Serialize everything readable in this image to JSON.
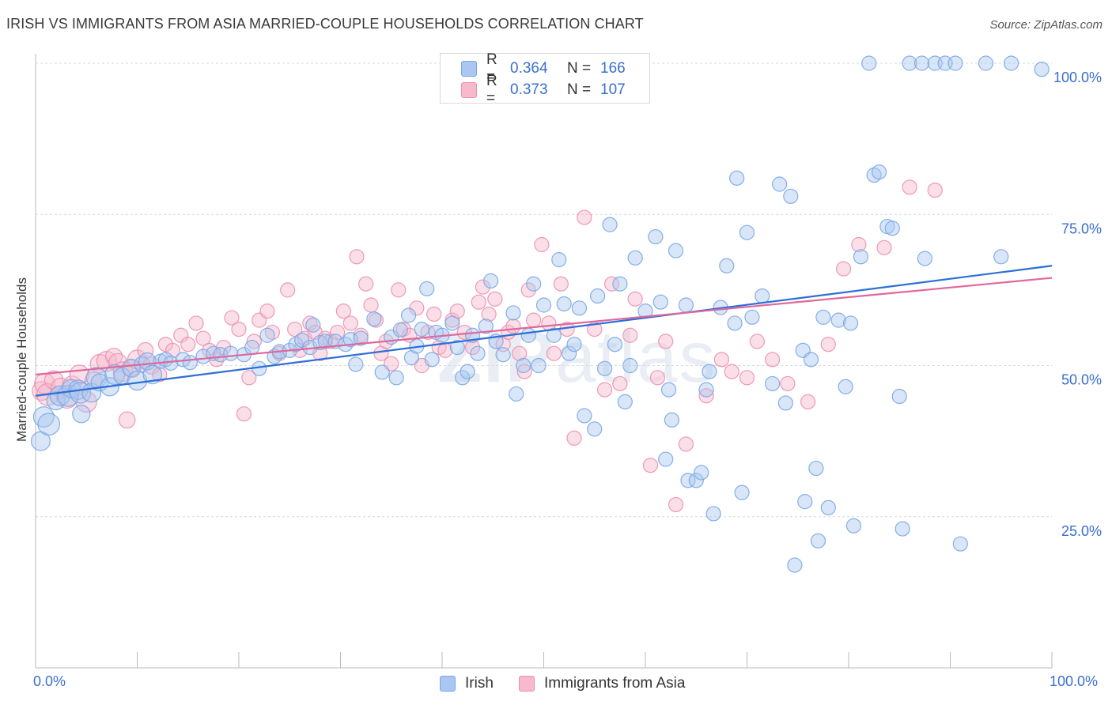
{
  "title": "IRISH VS IMMIGRANTS FROM ASIA MARRIED-COUPLE HOUSEHOLDS CORRELATION CHART",
  "source": "Source: ZipAtlas.com",
  "watermark": {
    "zip": "ZIP",
    "atlas": "atlas"
  },
  "legend_top": {
    "rows": [
      {
        "r_label": "R =",
        "r_value": "0.364",
        "n_label": "N =",
        "n_value": "166",
        "swatch": "#a9c7f0"
      },
      {
        "r_label": "R =",
        "r_value": "0.373",
        "n_label": "N =",
        "n_value": "107",
        "swatch": "#f7b9cc"
      }
    ]
  },
  "chart_data": {
    "type": "scatter",
    "xlabel": "",
    "ylabel": "Married-couple Households",
    "xlim": [
      0,
      100
    ],
    "ylim": [
      0,
      100
    ],
    "x_tick_labels": [
      "0.0%",
      "100.0%"
    ],
    "y_tick_labels": [
      "25.0%",
      "50.0%",
      "75.0%",
      "100.0%"
    ],
    "y_ticks": [
      25,
      50,
      75,
      100
    ],
    "grid": "horizontal dashed",
    "legend": "bottom",
    "series": [
      {
        "name": "Irish",
        "color": "#7aa6e6",
        "fill": "#a9c7f0",
        "line_color": "#2d6fd6",
        "trend": {
          "x": [
            0,
            100
          ],
          "y": [
            45,
            66.5
          ]
        },
        "points": [
          [
            0.5,
            37.5
          ],
          [
            0.8,
            41.5
          ],
          [
            1.3,
            40.3
          ],
          [
            2.0,
            44.2
          ],
          [
            2.4,
            45.0
          ],
          [
            3.2,
            45.0
          ],
          [
            3.5,
            46.2
          ],
          [
            4.2,
            46.0
          ],
          [
            4.4,
            45.5
          ],
          [
            4.5,
            42.0
          ],
          [
            5.5,
            45.5
          ],
          [
            6.0,
            48.0
          ],
          [
            6.3,
            47.2
          ],
          [
            7.3,
            46.5
          ],
          [
            7.8,
            48.5
          ],
          [
            8.5,
            48.3
          ],
          [
            9.4,
            49.6
          ],
          [
            10.0,
            47.5
          ],
          [
            10.5,
            50.2
          ],
          [
            11.0,
            50.7
          ],
          [
            11.5,
            48.5
          ],
          [
            12.3,
            50.7
          ],
          [
            12.8,
            51.0
          ],
          [
            13.3,
            50.4
          ],
          [
            14.5,
            51.0
          ],
          [
            15.2,
            50.5
          ],
          [
            16.5,
            51.5
          ],
          [
            17.5,
            52.0
          ],
          [
            18.2,
            51.8
          ],
          [
            19.2,
            52.0
          ],
          [
            20.5,
            51.8
          ],
          [
            21.3,
            53.0
          ],
          [
            22.0,
            49.5
          ],
          [
            22.8,
            55.0
          ],
          [
            23.5,
            51.5
          ],
          [
            24.0,
            52.3
          ],
          [
            25.0,
            52.5
          ],
          [
            25.6,
            53.5
          ],
          [
            26.2,
            54.2
          ],
          [
            27.0,
            53.0
          ],
          [
            27.3,
            56.7
          ],
          [
            28.0,
            53.8
          ],
          [
            28.5,
            54.0
          ],
          [
            29.5,
            54.0
          ],
          [
            30.5,
            53.5
          ],
          [
            31.0,
            54.3
          ],
          [
            31.5,
            50.2
          ],
          [
            32.0,
            54.5
          ],
          [
            33.3,
            57.7
          ],
          [
            34.1,
            48.9
          ],
          [
            35.0,
            54.7
          ],
          [
            35.5,
            48.0
          ],
          [
            35.9,
            55.9
          ],
          [
            36.7,
            58.3
          ],
          [
            37.0,
            51.3
          ],
          [
            37.5,
            53.2
          ],
          [
            38.0,
            56.0
          ],
          [
            38.5,
            62.7
          ],
          [
            39.0,
            51.0
          ],
          [
            39.4,
            55.5
          ],
          [
            40.0,
            55.0
          ],
          [
            41.0,
            57.0
          ],
          [
            41.5,
            53.0
          ],
          [
            42.0,
            48.0
          ],
          [
            42.5,
            49.0
          ],
          [
            43.0,
            55.0
          ],
          [
            43.5,
            52.0
          ],
          [
            44.3,
            56.5
          ],
          [
            44.8,
            64.0
          ],
          [
            45.3,
            54.0
          ],
          [
            46.0,
            51.8
          ],
          [
            47.0,
            58.7
          ],
          [
            47.3,
            45.3
          ],
          [
            48.0,
            50.0
          ],
          [
            48.5,
            55.0
          ],
          [
            49.0,
            63.5
          ],
          [
            49.5,
            50.0
          ],
          [
            50.0,
            60.0
          ],
          [
            51.0,
            55.0
          ],
          [
            51.5,
            67.5
          ],
          [
            52.0,
            60.2
          ],
          [
            52.5,
            52.0
          ],
          [
            53.0,
            53.5
          ],
          [
            53.5,
            59.5
          ],
          [
            54.0,
            41.7
          ],
          [
            55.0,
            39.5
          ],
          [
            55.3,
            61.5
          ],
          [
            56.0,
            49.5
          ],
          [
            56.5,
            73.3
          ],
          [
            57.0,
            53.5
          ],
          [
            57.5,
            63.5
          ],
          [
            58.0,
            44.0
          ],
          [
            58.5,
            50.0
          ],
          [
            59.0,
            67.8
          ],
          [
            60.0,
            59.0
          ],
          [
            61.0,
            71.3
          ],
          [
            61.5,
            60.5
          ],
          [
            62.0,
            34.5
          ],
          [
            62.3,
            46.0
          ],
          [
            62.6,
            41.0
          ],
          [
            63.0,
            69.0
          ],
          [
            64.0,
            60.0
          ],
          [
            64.2,
            31.0
          ],
          [
            65.0,
            31.0
          ],
          [
            65.5,
            32.3
          ],
          [
            66.0,
            46.0
          ],
          [
            66.3,
            49.0
          ],
          [
            66.7,
            25.5
          ],
          [
            67.4,
            59.6
          ],
          [
            68.0,
            66.5
          ],
          [
            68.8,
            57.0
          ],
          [
            69.0,
            81.0
          ],
          [
            69.5,
            29.0
          ],
          [
            70.0,
            72.0
          ],
          [
            70.5,
            58.0
          ],
          [
            71.5,
            61.5
          ],
          [
            72.5,
            47.0
          ],
          [
            73.2,
            80.0
          ],
          [
            73.8,
            43.8
          ],
          [
            74.3,
            78.0
          ],
          [
            74.7,
            17.0
          ],
          [
            75.5,
            52.5
          ],
          [
            75.7,
            27.5
          ],
          [
            76.3,
            51.0
          ],
          [
            76.8,
            33.0
          ],
          [
            77.0,
            21.0
          ],
          [
            77.5,
            58.0
          ],
          [
            78.0,
            26.5
          ],
          [
            79.0,
            57.5
          ],
          [
            79.7,
            46.5
          ],
          [
            80.2,
            57.0
          ],
          [
            80.5,
            23.5
          ],
          [
            81.2,
            68.0
          ],
          [
            82.0,
            100.0
          ],
          [
            82.5,
            81.5
          ],
          [
            83.0,
            82.0
          ],
          [
            83.8,
            73.0
          ],
          [
            84.3,
            72.7
          ],
          [
            85.0,
            44.9
          ],
          [
            85.3,
            23.0
          ],
          [
            86.0,
            100.0
          ],
          [
            87.2,
            100.0
          ],
          [
            87.5,
            67.7
          ],
          [
            88.5,
            100.0
          ],
          [
            89.5,
            100.0
          ],
          [
            90.5,
            100.0
          ],
          [
            91.0,
            20.5
          ],
          [
            93.5,
            100.0
          ],
          [
            95.0,
            68.0
          ],
          [
            96.0,
            100.0
          ],
          [
            99.0,
            99.0
          ]
        ]
      },
      {
        "name": "Immigrants from Asia",
        "color": "#ec8fae",
        "fill": "#f7b9cc",
        "line_color": "#e0689a",
        "trend": {
          "x": [
            0,
            100
          ],
          "y": [
            48.5,
            64.5
          ]
        },
        "points": [
          [
            0.6,
            45.8
          ],
          [
            0.9,
            47.0
          ],
          [
            1.2,
            45.2
          ],
          [
            1.8,
            47.6
          ],
          [
            2.5,
            46.3
          ],
          [
            3.1,
            44.7
          ],
          [
            3.6,
            46.8
          ],
          [
            4.3,
            48.5
          ],
          [
            5.0,
            44.0
          ],
          [
            5.7,
            47.5
          ],
          [
            6.3,
            50.3
          ],
          [
            7.0,
            50.7
          ],
          [
            7.7,
            51.5
          ],
          [
            8.1,
            50.5
          ],
          [
            8.6,
            49.0
          ],
          [
            9.0,
            41.0
          ],
          [
            9.5,
            49.5
          ],
          [
            10.0,
            51.0
          ],
          [
            10.8,
            52.5
          ],
          [
            11.4,
            50.0
          ],
          [
            12.2,
            48.5
          ],
          [
            12.8,
            53.5
          ],
          [
            13.5,
            52.5
          ],
          [
            14.3,
            55.0
          ],
          [
            15.0,
            53.5
          ],
          [
            15.8,
            57.0
          ],
          [
            16.5,
            54.5
          ],
          [
            17.1,
            52.5
          ],
          [
            17.8,
            51.0
          ],
          [
            18.5,
            53.0
          ],
          [
            19.3,
            57.9
          ],
          [
            20.0,
            56.0
          ],
          [
            20.5,
            42.0
          ],
          [
            21.0,
            48.0
          ],
          [
            21.5,
            54.0
          ],
          [
            22.0,
            57.5
          ],
          [
            22.8,
            59.0
          ],
          [
            23.3,
            55.5
          ],
          [
            24.0,
            52.0
          ],
          [
            24.8,
            62.5
          ],
          [
            25.5,
            56.0
          ],
          [
            26.0,
            52.5
          ],
          [
            26.5,
            54.5
          ],
          [
            27.0,
            57.0
          ],
          [
            27.5,
            55.5
          ],
          [
            28.0,
            52.0
          ],
          [
            28.5,
            54.5
          ],
          [
            29.0,
            54.0
          ],
          [
            29.7,
            55.5
          ],
          [
            30.3,
            59.0
          ],
          [
            31.0,
            57.0
          ],
          [
            31.6,
            68.0
          ],
          [
            32.0,
            55.0
          ],
          [
            32.5,
            63.5
          ],
          [
            33.0,
            60.0
          ],
          [
            33.5,
            57.5
          ],
          [
            34.0,
            52.0
          ],
          [
            34.5,
            54.0
          ],
          [
            35.0,
            50.3
          ],
          [
            35.7,
            62.5
          ],
          [
            36.2,
            56.0
          ],
          [
            36.8,
            55.0
          ],
          [
            37.5,
            59.5
          ],
          [
            38.0,
            50.0
          ],
          [
            38.6,
            55.5
          ],
          [
            39.2,
            58.5
          ],
          [
            39.7,
            53.0
          ],
          [
            40.3,
            52.5
          ],
          [
            41.0,
            57.5
          ],
          [
            41.5,
            59.0
          ],
          [
            42.2,
            55.5
          ],
          [
            43.0,
            53.0
          ],
          [
            43.6,
            60.5
          ],
          [
            44.0,
            63.0
          ],
          [
            44.6,
            58.5
          ],
          [
            45.2,
            61.0
          ],
          [
            46.0,
            53.5
          ],
          [
            46.5,
            55.5
          ],
          [
            47.0,
            56.5
          ],
          [
            47.6,
            52.0
          ],
          [
            48.1,
            49.0
          ],
          [
            48.5,
            62.5
          ],
          [
            49.0,
            57.5
          ],
          [
            49.8,
            70.0
          ],
          [
            50.5,
            57.0
          ],
          [
            51.0,
            52.0
          ],
          [
            51.7,
            63.5
          ],
          [
            52.3,
            56.0
          ],
          [
            53.0,
            38.0
          ],
          [
            54.0,
            74.5
          ],
          [
            55.0,
            56.0
          ],
          [
            56.0,
            46.0
          ],
          [
            56.7,
            63.5
          ],
          [
            57.5,
            47.0
          ],
          [
            58.5,
            55.0
          ],
          [
            59.0,
            61.0
          ],
          [
            60.5,
            33.5
          ],
          [
            61.2,
            48.0
          ],
          [
            62.0,
            54.0
          ],
          [
            63.0,
            27.0
          ],
          [
            64.0,
            37.0
          ],
          [
            66.0,
            45.0
          ],
          [
            67.5,
            51.0
          ],
          [
            68.5,
            49.0
          ],
          [
            70.0,
            48.0
          ],
          [
            71.0,
            54.0
          ],
          [
            72.5,
            51.0
          ],
          [
            74.0,
            47.0
          ],
          [
            76.0,
            44.0
          ],
          [
            78.0,
            53.5
          ],
          [
            79.5,
            66.0
          ],
          [
            81.0,
            70.0
          ],
          [
            83.5,
            69.5
          ],
          [
            86.0,
            79.5
          ],
          [
            88.5,
            79.0
          ]
        ]
      }
    ]
  }
}
